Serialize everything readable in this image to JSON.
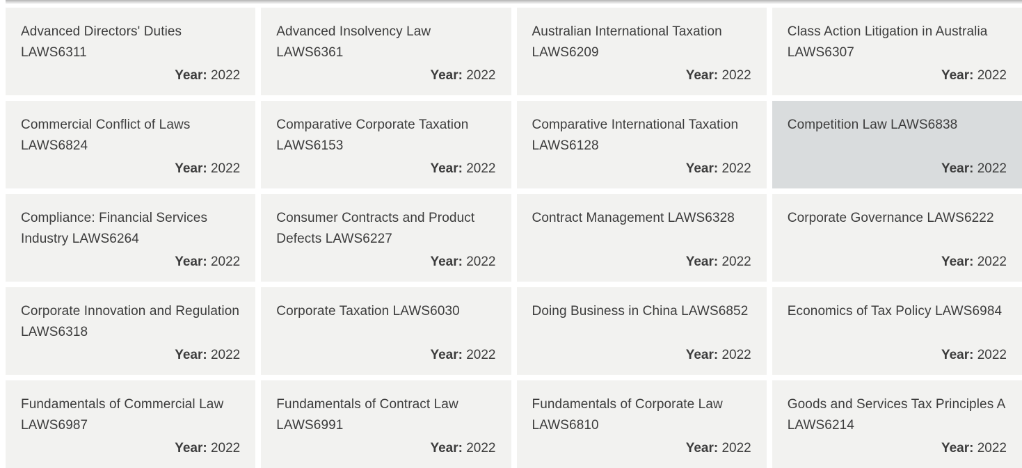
{
  "page": {
    "background": "#ffffff",
    "card_background": "#f2f2f0",
    "card_background_highlighted": "#d9dcdd",
    "text_color": "#3c3c3c",
    "year_label": "Year:"
  },
  "cards": [
    {
      "title": "Advanced Directors' Duties LAWS6311",
      "year": "2022",
      "highlighted": false
    },
    {
      "title": "Advanced Insolvency Law LAWS6361",
      "year": "2022",
      "highlighted": false
    },
    {
      "title": "Australian International Taxation LAWS6209",
      "year": "2022",
      "highlighted": false
    },
    {
      "title": "Class Action Litigation in Australia LAWS6307",
      "year": "2022",
      "highlighted": false
    },
    {
      "title": "Commercial Conflict of Laws LAWS6824",
      "year": "2022",
      "highlighted": false
    },
    {
      "title": "Comparative Corporate Taxation LAWS6153",
      "year": "2022",
      "highlighted": false
    },
    {
      "title": "Comparative International Taxation LAWS6128",
      "year": "2022",
      "highlighted": false
    },
    {
      "title": "Competition Law LAWS6838",
      "year": "2022",
      "highlighted": true
    },
    {
      "title": "Compliance: Financial Services Industry LAWS6264",
      "year": "2022",
      "highlighted": false
    },
    {
      "title": "Consumer Contracts and Product Defects LAWS6227",
      "year": "2022",
      "highlighted": false
    },
    {
      "title": "Contract Management LAWS6328",
      "year": "2022",
      "highlighted": false
    },
    {
      "title": "Corporate Governance LAWS6222",
      "year": "2022",
      "highlighted": false
    },
    {
      "title": "Corporate Innovation and Regulation LAWS6318",
      "year": "2022",
      "highlighted": false
    },
    {
      "title": "Corporate Taxation LAWS6030",
      "year": "2022",
      "highlighted": false
    },
    {
      "title": "Doing Business in China LAWS6852",
      "year": "2022",
      "highlighted": false
    },
    {
      "title": "Economics of Tax Policy LAWS6984",
      "year": "2022",
      "highlighted": false
    },
    {
      "title": "Fundamentals of Commercial Law LAWS6987",
      "year": "2022",
      "highlighted": false
    },
    {
      "title": "Fundamentals of Contract Law LAWS6991",
      "year": "2022",
      "highlighted": false
    },
    {
      "title": "Fundamentals of Corporate Law LAWS6810",
      "year": "2022",
      "highlighted": false
    },
    {
      "title": "Goods and Services Tax Principles A LAWS6214",
      "year": "2022",
      "highlighted": false
    }
  ]
}
